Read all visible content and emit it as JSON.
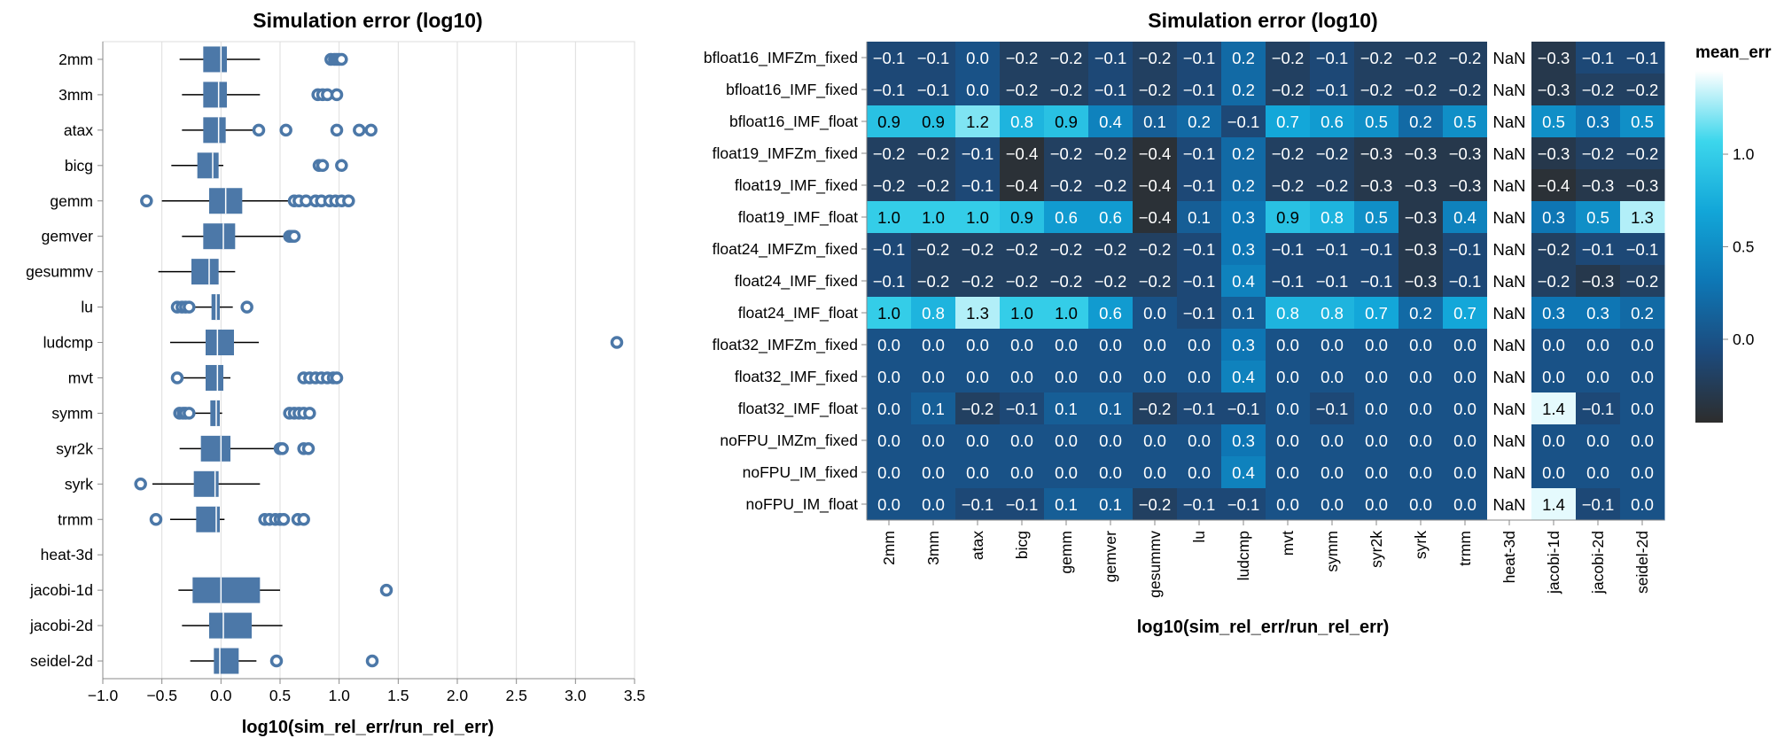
{
  "chart_data": [
    {
      "type": "boxplot",
      "title": "Simulation error (log10)",
      "xlabel": "log10(sim_rel_err/run_rel_err)",
      "xlim": [
        -1.0,
        3.5
      ],
      "xticks": [
        "−1.0",
        "−0.5",
        "0.0",
        "0.5",
        "1.0",
        "1.5",
        "2.0",
        "2.5",
        "3.0",
        "3.5"
      ],
      "grid": true,
      "color": "#4c78a8",
      "categories": [
        "2mm",
        "3mm",
        "atax",
        "bicg",
        "gemm",
        "gemver",
        "gesummv",
        "lu",
        "ludcmp",
        "mvt",
        "symm",
        "syr2k",
        "syrk",
        "trmm",
        "heat-3d",
        "jacobi-1d",
        "jacobi-2d",
        "seidel-2d"
      ],
      "boxes": [
        {
          "whisker_low": -0.35,
          "q1": -0.15,
          "median": 0.0,
          "q3": 0.05,
          "whisker_high": 0.33,
          "outliers": [
            0.93,
            0.96,
            0.98,
            1.0,
            1.02
          ]
        },
        {
          "whisker_low": -0.33,
          "q1": -0.15,
          "median": -0.02,
          "q3": 0.05,
          "whisker_high": 0.33,
          "outliers": [
            0.82,
            0.86,
            0.9,
            0.98
          ]
        },
        {
          "whisker_low": -0.33,
          "q1": -0.15,
          "median": -0.02,
          "q3": 0.04,
          "whisker_high": 0.27,
          "outliers": [
            0.32,
            0.55,
            0.98,
            1.17,
            1.27
          ]
        },
        {
          "whisker_low": -0.42,
          "q1": -0.2,
          "median": -0.07,
          "q3": -0.02,
          "whisker_high": 0.02,
          "outliers": [
            0.83,
            0.86,
            1.02
          ]
        },
        {
          "whisker_low": -0.5,
          "q1": -0.1,
          "median": 0.04,
          "q3": 0.18,
          "whisker_high": 0.58,
          "outliers": [
            -0.63,
            0.62,
            0.66,
            0.72,
            0.8,
            0.85,
            0.92,
            0.97,
            1.02,
            1.08
          ]
        },
        {
          "whisker_low": -0.33,
          "q1": -0.15,
          "median": 0.02,
          "q3": 0.12,
          "whisker_high": 0.57,
          "outliers": [
            0.58,
            0.6,
            0.62
          ]
        },
        {
          "whisker_low": -0.53,
          "q1": -0.25,
          "median": -0.1,
          "q3": -0.02,
          "whisker_high": 0.12,
          "outliers": []
        },
        {
          "whisker_low": -0.32,
          "q1": -0.08,
          "median": -0.04,
          "q3": -0.01,
          "whisker_high": 0.1,
          "outliers": [
            -0.37,
            -0.33,
            -0.3,
            -0.27,
            0.22
          ]
        },
        {
          "whisker_low": -0.43,
          "q1": -0.13,
          "median": -0.03,
          "q3": 0.11,
          "whisker_high": 0.32,
          "outliers": [
            3.35
          ]
        },
        {
          "whisker_low": -0.33,
          "q1": -0.13,
          "median": -0.03,
          "q3": 0.02,
          "whisker_high": 0.08,
          "outliers": [
            -0.37,
            0.7,
            0.75,
            0.8,
            0.85,
            0.9,
            0.95,
            0.98
          ]
        },
        {
          "whisker_low": -0.25,
          "q1": -0.09,
          "median": -0.04,
          "q3": -0.01,
          "whisker_high": 0.01,
          "outliers": [
            -0.35,
            -0.32,
            -0.3,
            -0.27,
            0.58,
            0.62,
            0.66,
            0.7,
            0.75
          ]
        },
        {
          "whisker_low": -0.35,
          "q1": -0.17,
          "median": 0.0,
          "q3": 0.08,
          "whisker_high": 0.48,
          "outliers": [
            0.5,
            0.52,
            0.7,
            0.74
          ]
        },
        {
          "whisker_low": -0.58,
          "q1": -0.23,
          "median": -0.05,
          "q3": -0.02,
          "whisker_high": 0.33,
          "outliers": [
            -0.68
          ]
        },
        {
          "whisker_low": -0.43,
          "q1": -0.21,
          "median": -0.04,
          "q3": -0.01,
          "whisker_high": 0.03,
          "outliers": [
            -0.55,
            0.37,
            0.41,
            0.46,
            0.5,
            0.53,
            0.65,
            0.7
          ]
        },
        null,
        {
          "whisker_low": -0.36,
          "q1": -0.24,
          "median": 0.0,
          "q3": 0.33,
          "whisker_high": 0.5,
          "outliers": [
            1.4
          ]
        },
        {
          "whisker_low": -0.33,
          "q1": -0.1,
          "median": 0.02,
          "q3": 0.26,
          "whisker_high": 0.52,
          "outliers": []
        },
        {
          "whisker_low": -0.26,
          "q1": -0.06,
          "median": -0.01,
          "q3": 0.15,
          "whisker_high": 0.3,
          "outliers": [
            0.47,
            1.28
          ]
        }
      ]
    },
    {
      "type": "heatmap",
      "title": "Simulation error (log10)",
      "xlabel": "log10(sim_rel_err/run_rel_err)",
      "legend_title": "mean_err",
      "legend_ticks": [
        "1.0",
        "0.5",
        "0.0"
      ],
      "color_scale": {
        "min": -0.45,
        "max": 1.45,
        "colors": [
          "#2d2d2d",
          "#1c4a7c",
          "#0e77b5",
          "#12a6d8",
          "#3cd6ec",
          "#ffffff"
        ]
      },
      "x_categories": [
        "2mm",
        "3mm",
        "atax",
        "bicg",
        "gemm",
        "gemver",
        "gesummv",
        "lu",
        "ludcmp",
        "mvt",
        "symm",
        "syr2k",
        "syrk",
        "trmm",
        "heat-3d",
        "jacobi-1d",
        "jacobi-2d",
        "seidel-2d"
      ],
      "y_categories": [
        "bfloat16_IMFZm_fixed",
        "bfloat16_IMF_fixed",
        "bfloat16_IMF_float",
        "float19_IMFZm_fixed",
        "float19_IMF_fixed",
        "float19_IMF_float",
        "float24_IMFZm_fixed",
        "float24_IMF_fixed",
        "float24_IMF_float",
        "float32_IMFZm_fixed",
        "float32_IMF_fixed",
        "float32_IMF_float",
        "noFPU_IMZm_fixed",
        "noFPU_IM_fixed",
        "noFPU_IM_float"
      ],
      "nan_label": "NaN",
      "values": [
        [
          -0.1,
          -0.1,
          0.0,
          -0.2,
          -0.2,
          -0.1,
          -0.2,
          -0.1,
          0.2,
          -0.2,
          -0.1,
          -0.2,
          -0.2,
          -0.2,
          null,
          -0.3,
          -0.1,
          -0.1
        ],
        [
          -0.1,
          -0.1,
          0.0,
          -0.2,
          -0.2,
          -0.1,
          -0.2,
          -0.1,
          0.2,
          -0.2,
          -0.1,
          -0.2,
          -0.2,
          -0.2,
          null,
          -0.3,
          -0.2,
          -0.2
        ],
        [
          0.9,
          0.9,
          1.2,
          0.8,
          0.9,
          0.4,
          0.1,
          0.2,
          -0.1,
          0.7,
          0.6,
          0.5,
          0.2,
          0.5,
          null,
          0.5,
          0.3,
          0.5
        ],
        [
          -0.2,
          -0.2,
          -0.1,
          -0.4,
          -0.2,
          -0.2,
          -0.4,
          -0.1,
          0.2,
          -0.2,
          -0.2,
          -0.3,
          -0.3,
          -0.3,
          null,
          -0.3,
          -0.2,
          -0.2
        ],
        [
          -0.2,
          -0.2,
          -0.1,
          -0.4,
          -0.2,
          -0.2,
          -0.4,
          -0.1,
          0.2,
          -0.2,
          -0.2,
          -0.3,
          -0.3,
          -0.3,
          null,
          -0.4,
          -0.3,
          -0.3
        ],
        [
          1.0,
          1.0,
          1.0,
          0.9,
          0.6,
          0.6,
          -0.4,
          0.1,
          0.3,
          0.9,
          0.8,
          0.5,
          -0.3,
          0.4,
          null,
          0.3,
          0.5,
          1.3
        ],
        [
          -0.1,
          -0.2,
          -0.2,
          -0.2,
          -0.2,
          -0.2,
          -0.2,
          -0.1,
          0.3,
          -0.1,
          -0.1,
          -0.1,
          -0.3,
          -0.1,
          null,
          -0.2,
          -0.1,
          -0.1
        ],
        [
          -0.1,
          -0.2,
          -0.2,
          -0.2,
          -0.2,
          -0.2,
          -0.2,
          -0.1,
          0.4,
          -0.1,
          -0.1,
          -0.1,
          -0.3,
          -0.1,
          null,
          -0.2,
          -0.3,
          -0.2
        ],
        [
          1.0,
          0.8,
          1.3,
          1.0,
          1.0,
          0.6,
          0.0,
          -0.1,
          0.1,
          0.8,
          0.8,
          0.7,
          0.2,
          0.7,
          null,
          0.3,
          0.3,
          0.2
        ],
        [
          0.0,
          0.0,
          0.0,
          0.0,
          0.0,
          0.0,
          0.0,
          0.0,
          0.3,
          0.0,
          0.0,
          0.0,
          0.0,
          0.0,
          null,
          0.0,
          0.0,
          0.0
        ],
        [
          0.0,
          0.0,
          0.0,
          0.0,
          0.0,
          0.0,
          0.0,
          0.0,
          0.4,
          0.0,
          0.0,
          0.0,
          0.0,
          0.0,
          null,
          0.0,
          0.0,
          0.0
        ],
        [
          0.0,
          0.1,
          -0.2,
          -0.1,
          0.1,
          0.1,
          -0.2,
          -0.1,
          -0.1,
          0.0,
          -0.1,
          0.0,
          0.0,
          0.0,
          null,
          1.4,
          -0.1,
          0.0
        ],
        [
          0.0,
          0.0,
          0.0,
          0.0,
          0.0,
          0.0,
          0.0,
          0.0,
          0.3,
          0.0,
          0.0,
          0.0,
          0.0,
          0.0,
          null,
          0.0,
          0.0,
          0.0
        ],
        [
          0.0,
          0.0,
          0.0,
          0.0,
          0.0,
          0.0,
          0.0,
          0.0,
          0.4,
          0.0,
          0.0,
          0.0,
          0.0,
          0.0,
          null,
          0.0,
          0.0,
          0.0
        ],
        [
          0.0,
          0.0,
          -0.1,
          -0.1,
          0.1,
          0.1,
          -0.2,
          -0.1,
          -0.1,
          0.0,
          0.0,
          0.0,
          0.0,
          0.0,
          null,
          1.4,
          -0.1,
          0.0
        ]
      ]
    }
  ]
}
